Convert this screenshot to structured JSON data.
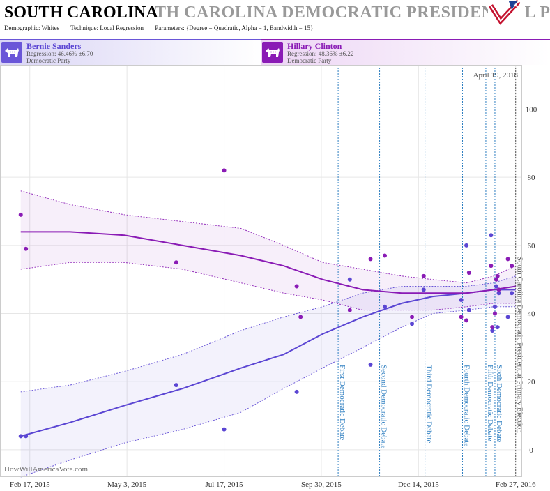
{
  "header": {
    "title": "SOUTH CAROLINA",
    "title_echo": "TH CAROLINA DEMOCRATIC PRESIDENTIAL P",
    "demographic": "Demographic: Whites",
    "technique": "Technique: Local Regression",
    "parameters": "Parameters: {Degree = Quadratic, Alpha = 1, Bandwidth = 15}",
    "logo_icon": "flag-check-logo-icon"
  },
  "legend": {
    "candidates": [
      {
        "name": "Bernie Sanders",
        "regression": "Regression: 46.46% ±6.70",
        "party": "Democratic Party",
        "color": "#5b46d3",
        "icon": "donkey-icon"
      },
      {
        "name": "Hillary Clinton",
        "regression": "Regression: 48.36% ±6.22",
        "party": "Democratic Party",
        "color": "#8a1bb5",
        "icon": "donkey-icon"
      }
    ]
  },
  "date_label": "April 19, 2018",
  "watermark": "HowWillAmericaVote.com",
  "chart_data": {
    "type": "scatter",
    "x_ticks": [
      "Feb 17, 2015",
      "May 3, 2015",
      "Jul 17, 2015",
      "Sep 30, 2015",
      "Dec 14, 2015",
      "Feb 27, 2016"
    ],
    "y_ticks": [
      0,
      20,
      40,
      60,
      80,
      100
    ],
    "xlim": [
      "2015-01-25",
      "2016-03-03"
    ],
    "ylim": [
      -8,
      113
    ],
    "events": [
      {
        "date": "2015-10-13",
        "label": "First Democratic Debate",
        "color": "#2f7fc1"
      },
      {
        "date": "2015-11-14",
        "label": "Second Democratic Debate",
        "color": "#2f7fc1"
      },
      {
        "date": "2015-12-19",
        "label": "Third Democratic Debate",
        "color": "#2f7fc1"
      },
      {
        "date": "2016-01-17",
        "label": "Fourth Democratic Debate",
        "color": "#2f7fc1"
      },
      {
        "date": "2016-02-04",
        "label": "Fifth Democratic Debate",
        "color": "#2f7fc1"
      },
      {
        "date": "2016-02-11",
        "label": "Sixth Democratic Debate",
        "color": "#2f7fc1"
      },
      {
        "date": "2016-02-27",
        "label": "South Carolina Democratic Presidential Primary Election",
        "color": "#555555"
      }
    ],
    "series": [
      {
        "name": "Bernie Sanders",
        "color": "#5b46d3",
        "points": [
          [
            "2015-02-10",
            4
          ],
          [
            "2015-02-14",
            4
          ],
          [
            "2015-06-10",
            19
          ],
          [
            "2015-07-17",
            6
          ],
          [
            "2015-09-11",
            17
          ],
          [
            "2015-10-22",
            50
          ],
          [
            "2015-11-07",
            25
          ],
          [
            "2015-11-18",
            42
          ],
          [
            "2015-12-09",
            37
          ],
          [
            "2015-12-18",
            47
          ],
          [
            "2016-01-16",
            44
          ],
          [
            "2016-01-20",
            60
          ],
          [
            "2016-01-22",
            41
          ],
          [
            "2016-02-08",
            63
          ],
          [
            "2016-02-09",
            35
          ],
          [
            "2016-02-11",
            42
          ],
          [
            "2016-02-12",
            48
          ],
          [
            "2016-02-13",
            36
          ],
          [
            "2016-02-14",
            46
          ],
          [
            "2016-02-21",
            39
          ],
          [
            "2016-02-24",
            46
          ]
        ],
        "trend": [
          [
            "2015-02-10",
            4
          ],
          [
            "2015-03-20",
            8
          ],
          [
            "2015-05-01",
            13
          ],
          [
            "2015-06-15",
            18
          ],
          [
            "2015-07-30",
            24
          ],
          [
            "2015-09-01",
            28
          ],
          [
            "2015-10-01",
            34
          ],
          [
            "2015-11-01",
            39
          ],
          [
            "2015-12-01",
            43
          ],
          [
            "2015-12-25",
            45
          ],
          [
            "2016-01-20",
            46
          ],
          [
            "2016-02-10",
            47
          ],
          [
            "2016-02-27",
            47
          ]
        ],
        "upper": [
          [
            "2015-02-10",
            17
          ],
          [
            "2015-03-20",
            19
          ],
          [
            "2015-05-01",
            23
          ],
          [
            "2015-06-15",
            28
          ],
          [
            "2015-07-30",
            35
          ],
          [
            "2015-09-01",
            39
          ],
          [
            "2015-10-01",
            42
          ],
          [
            "2015-11-01",
            46
          ],
          [
            "2015-12-01",
            48
          ],
          [
            "2015-12-25",
            48
          ],
          [
            "2016-01-20",
            48
          ],
          [
            "2016-02-10",
            49
          ],
          [
            "2016-02-27",
            51
          ]
        ],
        "lower": [
          [
            "2015-02-10",
            -8
          ],
          [
            "2015-03-20",
            -3
          ],
          [
            "2015-05-01",
            2
          ],
          [
            "2015-06-15",
            6
          ],
          [
            "2015-07-30",
            11
          ],
          [
            "2015-09-01",
            18
          ],
          [
            "2015-10-01",
            24
          ],
          [
            "2015-11-01",
            30
          ],
          [
            "2015-12-01",
            36
          ],
          [
            "2015-12-25",
            40
          ],
          [
            "2016-01-20",
            41
          ],
          [
            "2016-02-10",
            42
          ],
          [
            "2016-02-27",
            42
          ]
        ]
      },
      {
        "name": "Hillary Clinton",
        "color": "#8a1bb5",
        "points": [
          [
            "2015-02-10",
            69
          ],
          [
            "2015-02-14",
            59
          ],
          [
            "2015-06-10",
            55
          ],
          [
            "2015-07-17",
            82
          ],
          [
            "2015-09-11",
            48
          ],
          [
            "2015-09-14",
            39
          ],
          [
            "2015-10-22",
            41
          ],
          [
            "2015-11-07",
            56
          ],
          [
            "2015-11-18",
            57
          ],
          [
            "2015-12-09",
            39
          ],
          [
            "2015-12-18",
            51
          ],
          [
            "2016-01-16",
            39
          ],
          [
            "2016-01-20",
            38
          ],
          [
            "2016-01-22",
            52
          ],
          [
            "2016-02-08",
            54
          ],
          [
            "2016-02-09",
            36
          ],
          [
            "2016-02-11",
            40
          ],
          [
            "2016-02-12",
            50
          ],
          [
            "2016-02-13",
            51
          ],
          [
            "2016-02-14",
            47
          ],
          [
            "2016-02-21",
            56
          ],
          [
            "2016-02-24",
            54
          ]
        ],
        "trend": [
          [
            "2015-02-10",
            64
          ],
          [
            "2015-03-20",
            64
          ],
          [
            "2015-05-01",
            63
          ],
          [
            "2015-06-15",
            60
          ],
          [
            "2015-07-30",
            57
          ],
          [
            "2015-09-01",
            54
          ],
          [
            "2015-10-01",
            50
          ],
          [
            "2015-11-01",
            47
          ],
          [
            "2015-12-01",
            46
          ],
          [
            "2015-12-25",
            46
          ],
          [
            "2016-01-20",
            46
          ],
          [
            "2016-02-10",
            47
          ],
          [
            "2016-02-27",
            48
          ]
        ],
        "upper": [
          [
            "2015-02-10",
            76
          ],
          [
            "2015-03-20",
            72
          ],
          [
            "2015-05-01",
            69
          ],
          [
            "2015-06-15",
            67
          ],
          [
            "2015-07-30",
            65
          ],
          [
            "2015-09-01",
            60
          ],
          [
            "2015-10-01",
            55
          ],
          [
            "2015-11-01",
            53
          ],
          [
            "2015-12-01",
            51
          ],
          [
            "2015-12-25",
            50
          ],
          [
            "2016-01-20",
            49
          ],
          [
            "2016-02-10",
            51
          ],
          [
            "2016-02-27",
            54
          ]
        ],
        "lower": [
          [
            "2015-02-10",
            53
          ],
          [
            "2015-03-20",
            55
          ],
          [
            "2015-05-01",
            55
          ],
          [
            "2015-06-15",
            53
          ],
          [
            "2015-07-30",
            49
          ],
          [
            "2015-09-01",
            46
          ],
          [
            "2015-10-01",
            44
          ],
          [
            "2015-11-01",
            41
          ],
          [
            "2015-12-01",
            41
          ],
          [
            "2015-12-25",
            41
          ],
          [
            "2016-01-20",
            42
          ],
          [
            "2016-02-10",
            43
          ],
          [
            "2016-02-27",
            43
          ]
        ]
      }
    ]
  }
}
